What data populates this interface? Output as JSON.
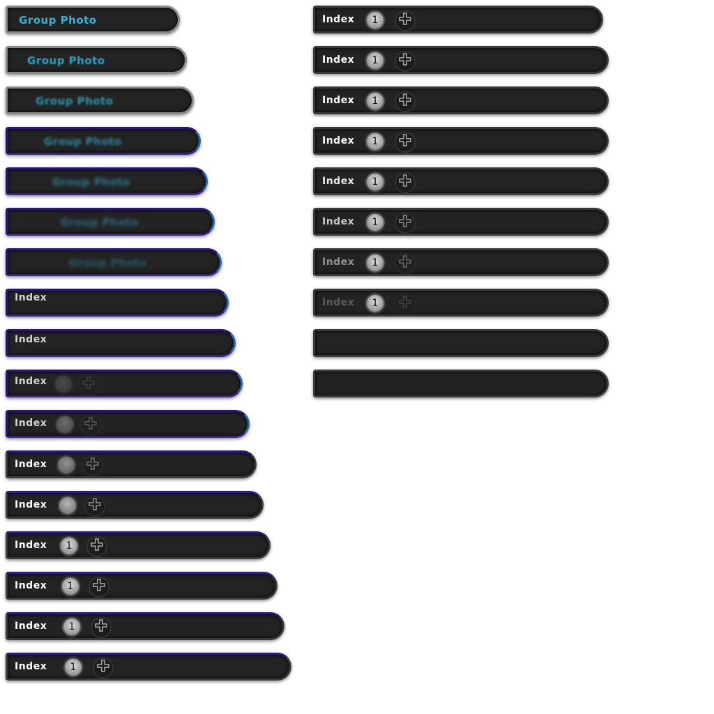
{
  "left_frames": [
    {
      "label": "Group Photo"
    },
    {
      "label": "Group Photo"
    },
    {
      "label": "Group Photo"
    },
    {
      "label": "Group Photo"
    },
    {
      "label": "Group Photo"
    },
    {
      "label": "Group Photo"
    },
    {
      "label": "Group Photo"
    },
    {
      "label": "Index"
    },
    {
      "label": "Index"
    },
    {
      "label": "Index"
    },
    {
      "label": "Index"
    },
    {
      "label": "Index"
    },
    {
      "label": "Index"
    },
    {
      "label": "Index"
    },
    {
      "label": "Index"
    },
    {
      "label": "Index"
    },
    {
      "label": "Index"
    }
  ],
  "right_frames": [
    {
      "label": "Index",
      "badge": "1",
      "fade": 1
    },
    {
      "label": "Index",
      "badge": "1",
      "fade": 1
    },
    {
      "label": "Index",
      "badge": "1",
      "fade": 1
    },
    {
      "label": "Index",
      "badge": "1",
      "fade": 1
    },
    {
      "label": "Index",
      "badge": "1",
      "fade": 0.9
    },
    {
      "label": "Index",
      "badge": "1",
      "fade": 0.75
    },
    {
      "label": "Index",
      "badge": "1",
      "fade": 0.5
    },
    {
      "label": "Index",
      "badge": "1",
      "fade": 0.25
    },
    {
      "label": "",
      "badge": "",
      "fade": 0
    },
    {
      "label": "",
      "badge": "",
      "fade": 0
    }
  ],
  "plus_glyph": "✚",
  "colors": {
    "group_text": "#2fb3d8",
    "bar_bg": "#232323",
    "accent_purple": "#3c1fa0"
  }
}
